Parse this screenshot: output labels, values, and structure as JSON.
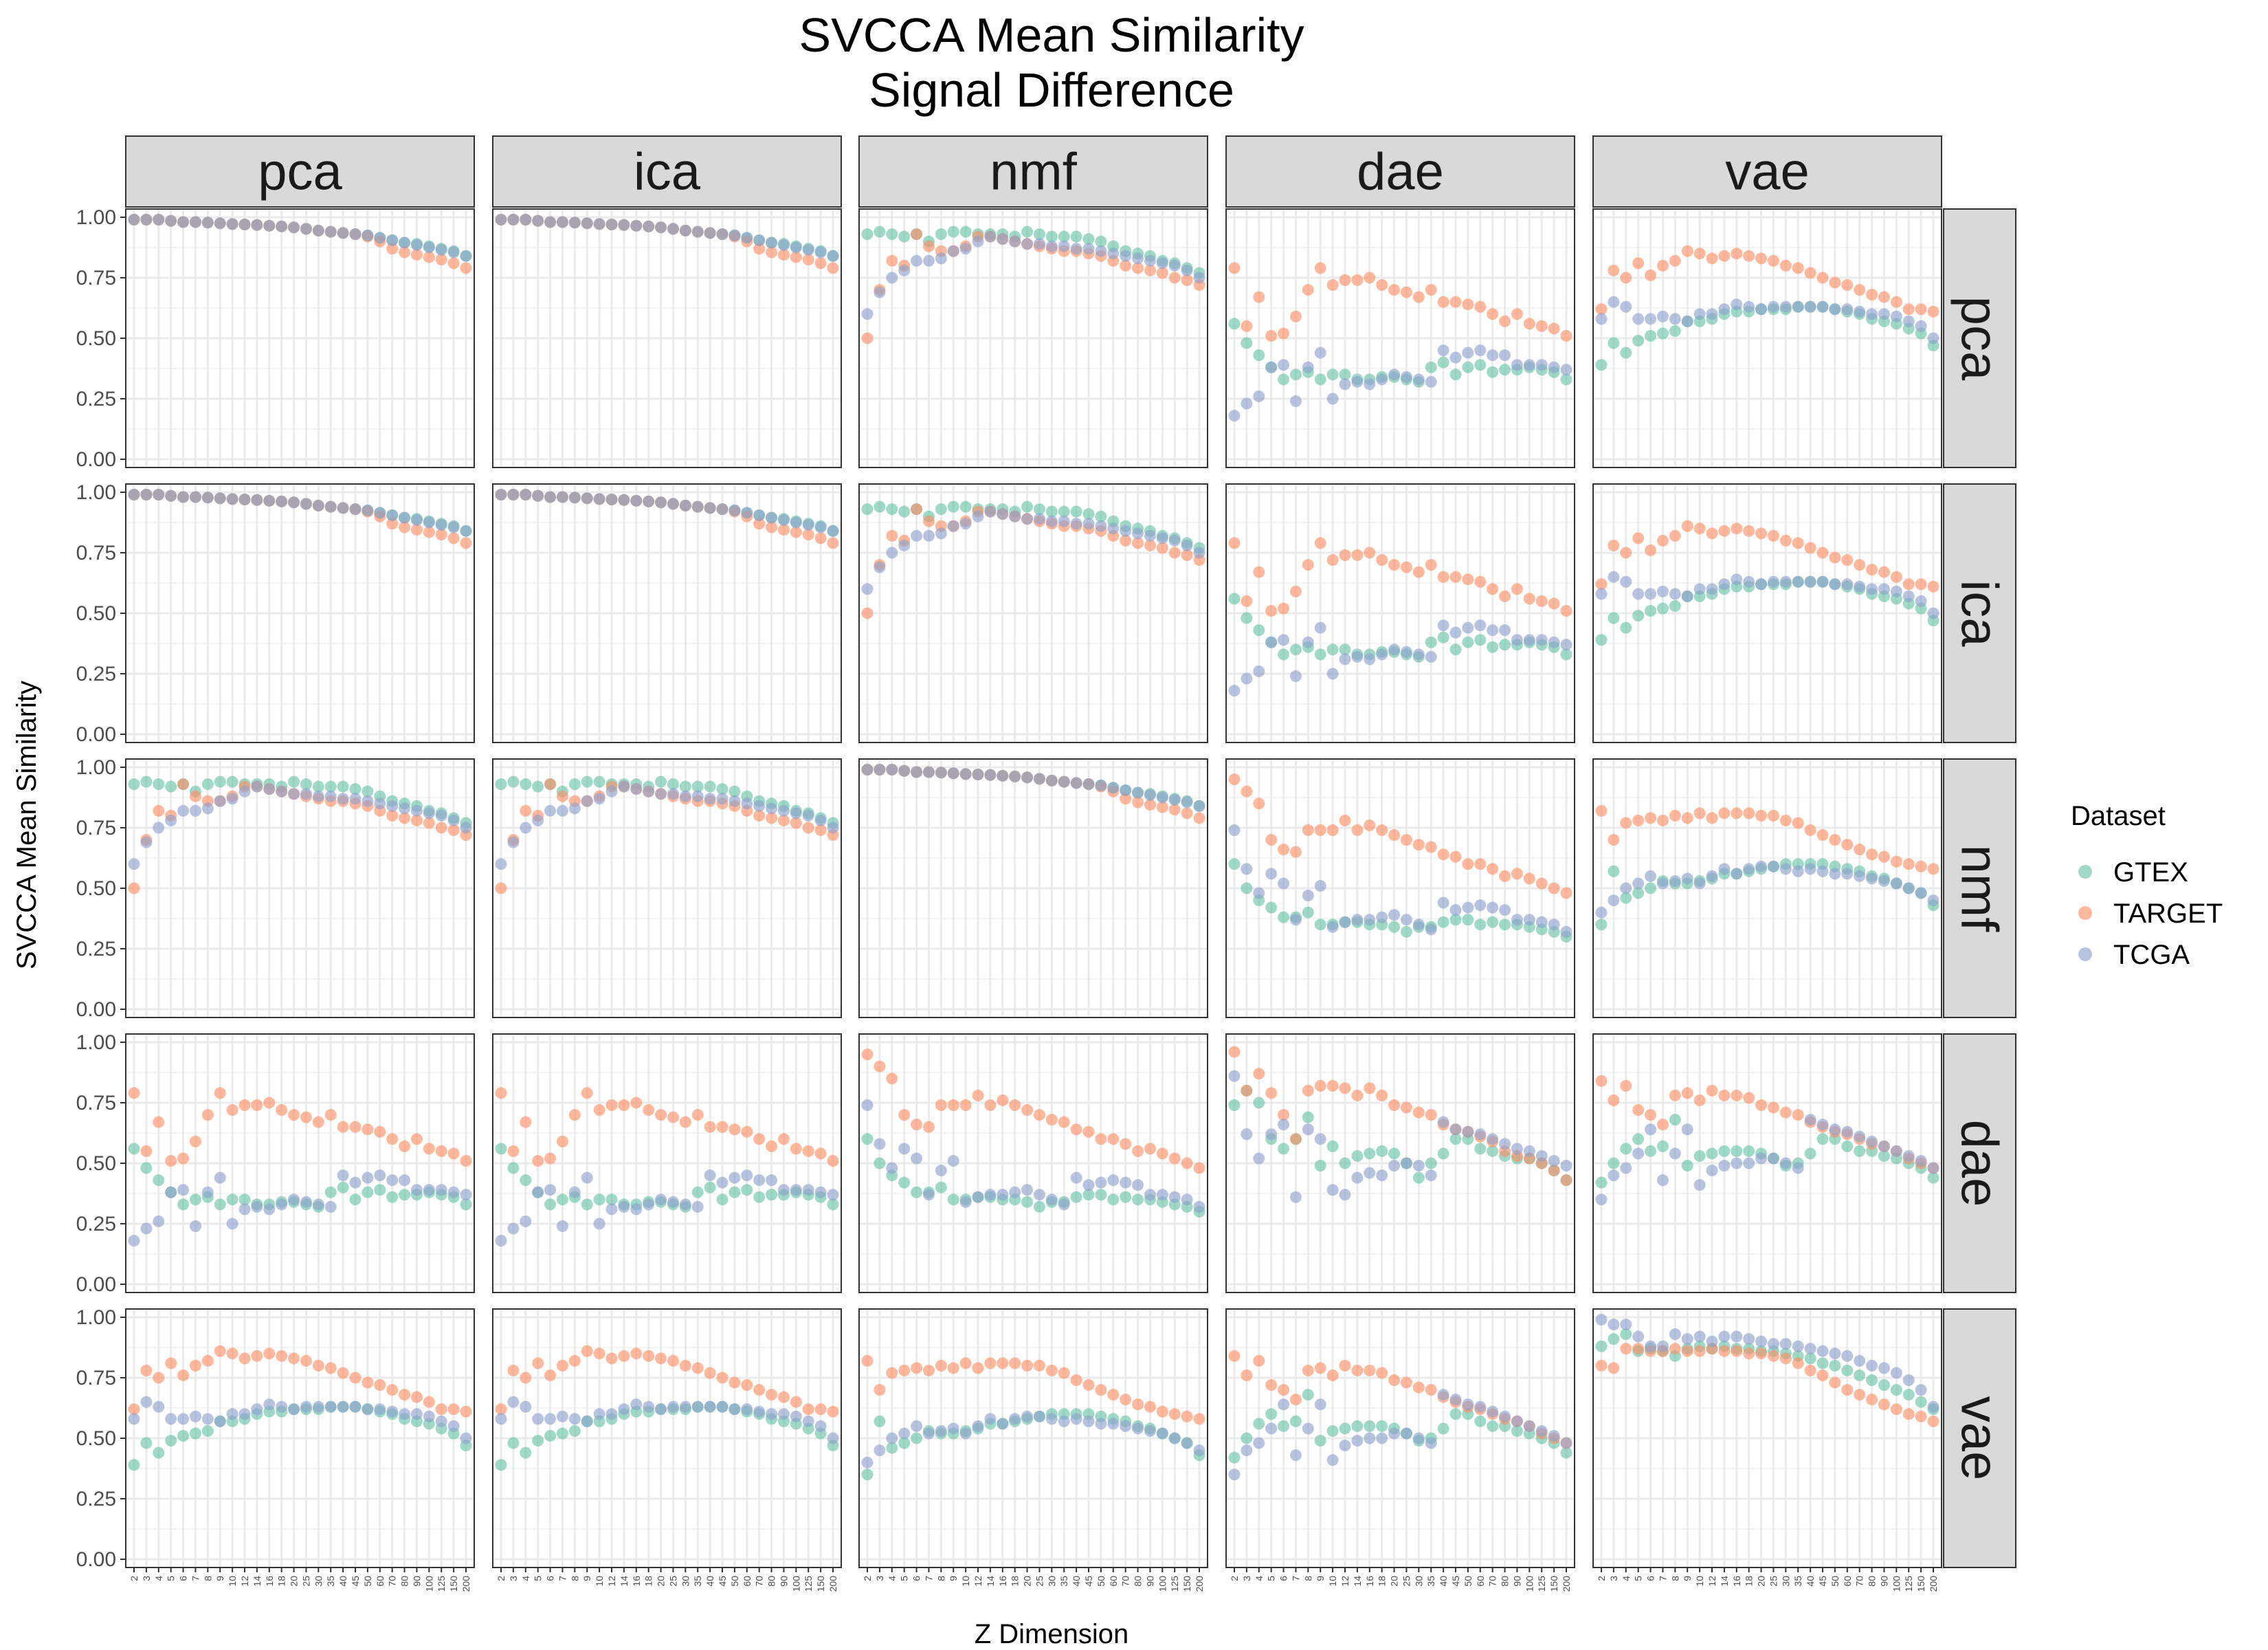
{
  "chart_data": {
    "type": "scatter",
    "title": "SVCCA Mean Similarity",
    "subtitle": "Signal Difference",
    "xlabel": "Z Dimension",
    "ylabel": "SVCCA Mean Similarity",
    "ylim": [
      0,
      1
    ],
    "y_ticks": [
      "0.00",
      "0.25",
      "0.50",
      "0.75",
      "1.00"
    ],
    "x": [
      "2",
      "3",
      "4",
      "5",
      "6",
      "7",
      "8",
      "9",
      "10",
      "12",
      "14",
      "16",
      "18",
      "20",
      "25",
      "30",
      "35",
      "40",
      "45",
      "50",
      "60",
      "70",
      "80",
      "90",
      "100",
      "125",
      "150",
      "200"
    ],
    "facet_columns": [
      "pca",
      "ica",
      "nmf",
      "dae",
      "vae"
    ],
    "facet_rows": [
      "pca",
      "ica",
      "nmf",
      "dae",
      "vae"
    ],
    "legend": {
      "title": "Dataset",
      "position": "right"
    },
    "grid": true,
    "series": [
      {
        "name": "GTEX",
        "color": "#66c2a5"
      },
      {
        "name": "TARGET",
        "color": "#fc8d62"
      },
      {
        "name": "TCGA",
        "color": "#8da0cb"
      }
    ],
    "profiles": {
      "lin": {
        "GTEX": [
          0.99,
          0.99,
          0.99,
          0.985,
          0.98,
          0.98,
          0.978,
          0.975,
          0.972,
          0.97,
          0.968,
          0.965,
          0.962,
          0.958,
          0.952,
          0.945,
          0.94,
          0.935,
          0.93,
          0.925,
          0.915,
          0.905,
          0.895,
          0.89,
          0.88,
          0.87,
          0.86,
          0.84
        ],
        "TARGET": [
          0.99,
          0.99,
          0.99,
          0.985,
          0.98,
          0.98,
          0.978,
          0.975,
          0.972,
          0.97,
          0.968,
          0.965,
          0.962,
          0.958,
          0.952,
          0.945,
          0.94,
          0.935,
          0.93,
          0.92,
          0.9,
          0.87,
          0.855,
          0.845,
          0.835,
          0.825,
          0.81,
          0.79
        ],
        "TCGA": [
          0.99,
          0.99,
          0.99,
          0.985,
          0.98,
          0.98,
          0.978,
          0.975,
          0.972,
          0.97,
          0.968,
          0.965,
          0.962,
          0.958,
          0.952,
          0.945,
          0.94,
          0.935,
          0.93,
          0.925,
          0.915,
          0.905,
          0.895,
          0.885,
          0.875,
          0.865,
          0.855,
          0.84
        ]
      },
      "nmfL": {
        "GTEX": [
          0.93,
          0.94,
          0.93,
          0.92,
          0.93,
          0.9,
          0.93,
          0.94,
          0.94,
          0.93,
          0.93,
          0.93,
          0.92,
          0.94,
          0.93,
          0.92,
          0.92,
          0.92,
          0.91,
          0.9,
          0.88,
          0.86,
          0.85,
          0.84,
          0.82,
          0.81,
          0.79,
          0.77
        ],
        "TARGET": [
          0.5,
          0.7,
          0.82,
          0.8,
          0.93,
          0.88,
          0.86,
          0.86,
          0.88,
          0.92,
          0.92,
          0.91,
          0.9,
          0.89,
          0.88,
          0.87,
          0.86,
          0.86,
          0.85,
          0.84,
          0.82,
          0.8,
          0.79,
          0.78,
          0.77,
          0.75,
          0.74,
          0.72
        ],
        "TCGA": [
          0.6,
          0.69,
          0.75,
          0.78,
          0.82,
          0.82,
          0.83,
          0.86,
          0.87,
          0.9,
          0.92,
          0.91,
          0.9,
          0.89,
          0.89,
          0.88,
          0.88,
          0.87,
          0.87,
          0.86,
          0.85,
          0.84,
          0.83,
          0.82,
          0.81,
          0.8,
          0.78,
          0.75
        ]
      },
      "daeL": {
        "GTEX": [
          0.56,
          0.48,
          0.43,
          0.38,
          0.33,
          0.35,
          0.36,
          0.33,
          0.35,
          0.35,
          0.33,
          0.33,
          0.34,
          0.34,
          0.33,
          0.32,
          0.38,
          0.4,
          0.35,
          0.38,
          0.39,
          0.36,
          0.37,
          0.37,
          0.38,
          0.37,
          0.36,
          0.33
        ],
        "TARGET": [
          0.79,
          0.55,
          0.67,
          0.51,
          0.52,
          0.59,
          0.7,
          0.79,
          0.72,
          0.74,
          0.74,
          0.75,
          0.72,
          0.7,
          0.69,
          0.67,
          0.7,
          0.65,
          0.65,
          0.64,
          0.63,
          0.6,
          0.57,
          0.6,
          0.56,
          0.55,
          0.54,
          0.51
        ],
        "TCGA": [
          0.18,
          0.23,
          0.26,
          0.38,
          0.39,
          0.24,
          0.38,
          0.44,
          0.25,
          0.31,
          0.32,
          0.31,
          0.33,
          0.35,
          0.34,
          0.33,
          0.32,
          0.45,
          0.42,
          0.44,
          0.45,
          0.43,
          0.43,
          0.39,
          0.39,
          0.39,
          0.38,
          0.37
        ]
      },
      "vaeL": {
        "GTEX": [
          0.39,
          0.48,
          0.44,
          0.49,
          0.51,
          0.52,
          0.53,
          0.57,
          0.57,
          0.58,
          0.6,
          0.61,
          0.61,
          0.62,
          0.62,
          0.62,
          0.63,
          0.63,
          0.63,
          0.62,
          0.61,
          0.6,
          0.58,
          0.57,
          0.56,
          0.54,
          0.52,
          0.47
        ],
        "TARGET": [
          0.62,
          0.78,
          0.75,
          0.81,
          0.76,
          0.8,
          0.82,
          0.86,
          0.85,
          0.83,
          0.84,
          0.85,
          0.84,
          0.83,
          0.82,
          0.8,
          0.79,
          0.77,
          0.75,
          0.73,
          0.72,
          0.7,
          0.68,
          0.67,
          0.65,
          0.62,
          0.62,
          0.61
        ],
        "TCGA": [
          0.58,
          0.65,
          0.63,
          0.58,
          0.58,
          0.59,
          0.58,
          0.57,
          0.6,
          0.6,
          0.62,
          0.64,
          0.63,
          0.62,
          0.63,
          0.63,
          0.63,
          0.63,
          0.63,
          0.62,
          0.62,
          0.61,
          0.6,
          0.6,
          0.59,
          0.57,
          0.55,
          0.5
        ]
      },
      "nmfdae": {
        "GTEX": [
          0.6,
          0.5,
          0.45,
          0.42,
          0.38,
          0.38,
          0.4,
          0.35,
          0.35,
          0.36,
          0.36,
          0.35,
          0.35,
          0.34,
          0.32,
          0.34,
          0.34,
          0.36,
          0.37,
          0.37,
          0.35,
          0.36,
          0.35,
          0.35,
          0.34,
          0.33,
          0.32,
          0.3
        ],
        "TARGET": [
          0.95,
          0.9,
          0.85,
          0.7,
          0.66,
          0.65,
          0.74,
          0.74,
          0.74,
          0.78,
          0.74,
          0.76,
          0.74,
          0.72,
          0.7,
          0.68,
          0.67,
          0.64,
          0.63,
          0.6,
          0.6,
          0.58,
          0.55,
          0.56,
          0.54,
          0.52,
          0.5,
          0.48
        ],
        "TCGA": [
          0.74,
          0.58,
          0.48,
          0.56,
          0.52,
          0.37,
          0.47,
          0.51,
          0.34,
          0.36,
          0.37,
          0.37,
          0.38,
          0.39,
          0.37,
          0.35,
          0.33,
          0.44,
          0.41,
          0.42,
          0.43,
          0.42,
          0.41,
          0.37,
          0.37,
          0.36,
          0.35,
          0.32
        ]
      },
      "nmfvae": {
        "GTEX": [
          0.35,
          0.57,
          0.46,
          0.48,
          0.5,
          0.53,
          0.52,
          0.52,
          0.53,
          0.54,
          0.56,
          0.56,
          0.57,
          0.58,
          0.59,
          0.6,
          0.6,
          0.6,
          0.6,
          0.59,
          0.58,
          0.57,
          0.55,
          0.54,
          0.52,
          0.5,
          0.48,
          0.43
        ],
        "TARGET": [
          0.82,
          0.7,
          0.77,
          0.78,
          0.79,
          0.78,
          0.8,
          0.79,
          0.81,
          0.79,
          0.81,
          0.81,
          0.81,
          0.8,
          0.8,
          0.78,
          0.77,
          0.74,
          0.72,
          0.7,
          0.68,
          0.66,
          0.64,
          0.63,
          0.61,
          0.6,
          0.59,
          0.58
        ],
        "TCGA": [
          0.4,
          0.45,
          0.5,
          0.52,
          0.55,
          0.52,
          0.53,
          0.54,
          0.52,
          0.55,
          0.58,
          0.56,
          0.58,
          0.59,
          0.59,
          0.58,
          0.57,
          0.58,
          0.57,
          0.56,
          0.56,
          0.55,
          0.54,
          0.53,
          0.52,
          0.5,
          0.48,
          0.45
        ]
      },
      "daedae": {
        "GTEX": [
          0.74,
          0.8,
          0.75,
          0.6,
          0.56,
          0.6,
          0.69,
          0.49,
          0.57,
          0.5,
          0.53,
          0.54,
          0.55,
          0.54,
          0.5,
          0.44,
          0.5,
          0.54,
          0.6,
          0.6,
          0.56,
          0.55,
          0.53,
          0.52,
          0.52,
          0.5,
          0.47,
          0.43
        ],
        "TARGET": [
          0.96,
          0.8,
          0.87,
          0.79,
          0.7,
          0.6,
          0.8,
          0.82,
          0.82,
          0.81,
          0.78,
          0.81,
          0.78,
          0.74,
          0.73,
          0.71,
          0.7,
          0.66,
          0.64,
          0.63,
          0.61,
          0.59,
          0.55,
          0.53,
          0.52,
          0.5,
          0.47,
          0.43
        ],
        "TCGA": [
          0.86,
          0.62,
          0.52,
          0.62,
          0.66,
          0.36,
          0.64,
          0.6,
          0.39,
          0.37,
          0.44,
          0.46,
          0.45,
          0.49,
          0.5,
          0.49,
          0.45,
          0.67,
          0.64,
          0.63,
          0.62,
          0.6,
          0.58,
          0.56,
          0.55,
          0.53,
          0.51,
          0.49
        ]
      },
      "daevae": {
        "GTEX": [
          0.42,
          0.5,
          0.56,
          0.6,
          0.55,
          0.57,
          0.68,
          0.49,
          0.53,
          0.54,
          0.55,
          0.55,
          0.55,
          0.54,
          0.52,
          0.49,
          0.5,
          0.54,
          0.6,
          0.6,
          0.57,
          0.55,
          0.55,
          0.53,
          0.52,
          0.5,
          0.48,
          0.44
        ],
        "TARGET": [
          0.84,
          0.76,
          0.82,
          0.72,
          0.7,
          0.66,
          0.78,
          0.79,
          0.76,
          0.8,
          0.78,
          0.78,
          0.77,
          0.74,
          0.73,
          0.71,
          0.7,
          0.67,
          0.65,
          0.63,
          0.62,
          0.6,
          0.58,
          0.57,
          0.55,
          0.52,
          0.5,
          0.48
        ],
        "TCGA": [
          0.35,
          0.45,
          0.48,
          0.54,
          0.64,
          0.43,
          0.54,
          0.64,
          0.41,
          0.47,
          0.49,
          0.5,
          0.5,
          0.52,
          0.52,
          0.5,
          0.48,
          0.68,
          0.66,
          0.64,
          0.63,
          0.61,
          0.59,
          0.57,
          0.55,
          0.53,
          0.51,
          0.48
        ]
      },
      "vaevae": {
        "GTEX": [
          0.88,
          0.91,
          0.93,
          0.86,
          0.87,
          0.86,
          0.84,
          0.87,
          0.88,
          0.87,
          0.88,
          0.87,
          0.87,
          0.86,
          0.86,
          0.85,
          0.84,
          0.83,
          0.81,
          0.8,
          0.78,
          0.76,
          0.74,
          0.72,
          0.7,
          0.68,
          0.65,
          0.62
        ],
        "TARGET": [
          0.8,
          0.79,
          0.87,
          0.87,
          0.86,
          0.86,
          0.87,
          0.86,
          0.86,
          0.87,
          0.86,
          0.86,
          0.85,
          0.85,
          0.84,
          0.83,
          0.81,
          0.78,
          0.76,
          0.73,
          0.7,
          0.68,
          0.66,
          0.64,
          0.62,
          0.6,
          0.59,
          0.57
        ],
        "TCGA": [
          0.99,
          0.97,
          0.97,
          0.92,
          0.88,
          0.88,
          0.93,
          0.91,
          0.92,
          0.9,
          0.92,
          0.92,
          0.91,
          0.9,
          0.89,
          0.89,
          0.88,
          0.87,
          0.86,
          0.85,
          0.84,
          0.82,
          0.8,
          0.79,
          0.77,
          0.74,
          0.7,
          0.63
        ]
      }
    },
    "panels": [
      [
        "lin",
        "lin",
        "nmfL",
        "daeL",
        "vaeL"
      ],
      [
        "lin",
        "lin",
        "nmfL",
        "daeL",
        "vaeL"
      ],
      [
        "nmfL",
        "nmfL",
        "lin",
        "nmfdae",
        "nmfvae"
      ],
      [
        "daeL",
        "daeL",
        "nmfdae",
        "daedae",
        "daevae"
      ],
      [
        "vaeL",
        "vaeL",
        "nmfvae",
        "daevae",
        "vaevae"
      ]
    ]
  }
}
